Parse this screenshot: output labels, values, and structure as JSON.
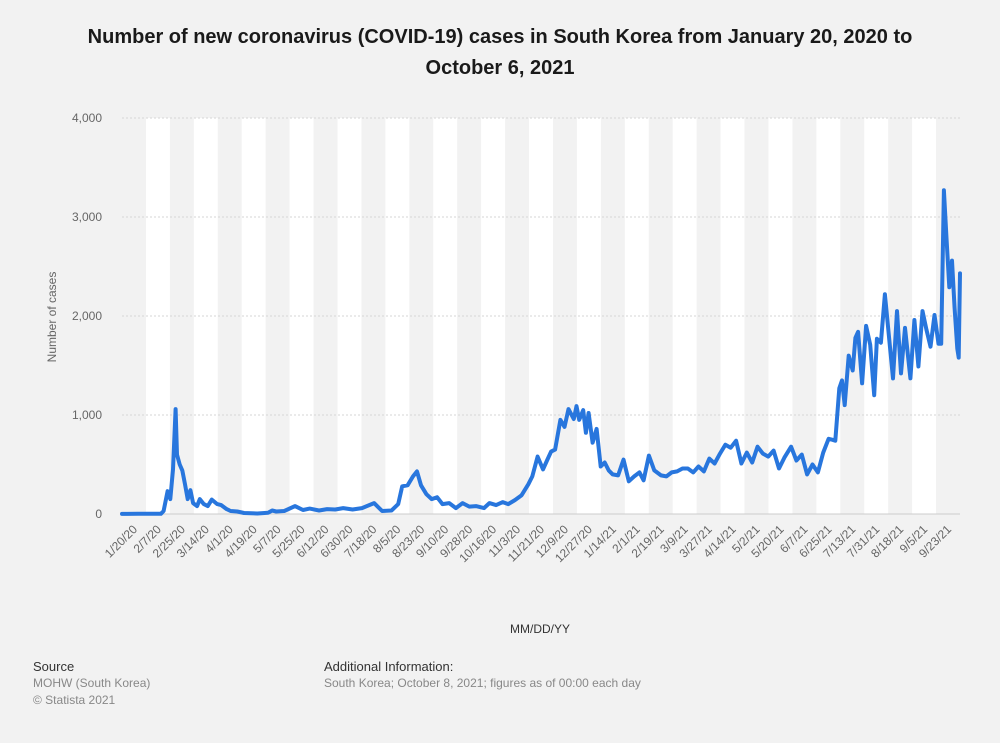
{
  "title": "Number of new coronavirus (COVID-19) cases in South Korea from January 20, 2020 to October 6, 2021",
  "chart_data": {
    "type": "line",
    "title": "Number of new coronavirus (COVID-19) cases in South Korea from January 20, 2020 to October 6, 2021",
    "xlabel": "MM/DD/YY",
    "ylabel": "Number of cases",
    "ylim": [
      0,
      4000
    ],
    "yticks": [
      "0",
      "1,000",
      "2,000",
      "3,000",
      "4,000"
    ],
    "xticks": [
      "1/20/20",
      "2/7/20",
      "2/25/20",
      "3/14/20",
      "4/1/20",
      "4/19/20",
      "5/7/20",
      "5/25/20",
      "6/12/20",
      "6/30/20",
      "7/18/20",
      "8/5/20",
      "8/23/20",
      "9/10/20",
      "9/28/20",
      "10/16/20",
      "11/3/20",
      "11/21/20",
      "12/9/20",
      "12/27/20",
      "1/14/21",
      "2/1/21",
      "2/19/21",
      "3/9/21",
      "3/27/21",
      "4/14/21",
      "5/2/21",
      "5/20/21",
      "6/7/21",
      "6/25/21",
      "7/13/21",
      "7/31/21",
      "8/18/21",
      "9/5/21",
      "9/23/21"
    ],
    "x_start": "2020-01-20",
    "x_end": "2021-10-06",
    "grid": true,
    "line_color": "#2876dd",
    "series_points": [
      [
        "2020-01-20",
        1
      ],
      [
        "2020-02-01",
        2
      ],
      [
        "2020-02-10",
        3
      ],
      [
        "2020-02-18",
        2
      ],
      [
        "2020-02-20",
        30
      ],
      [
        "2020-02-23",
        230
      ],
      [
        "2020-02-25",
        150
      ],
      [
        "2020-02-27",
        450
      ],
      [
        "2020-02-29",
        1060
      ],
      [
        "2020-03-01",
        600
      ],
      [
        "2020-03-03",
        500
      ],
      [
        "2020-03-05",
        440
      ],
      [
        "2020-03-07",
        300
      ],
      [
        "2020-03-09",
        150
      ],
      [
        "2020-03-11",
        240
      ],
      [
        "2020-03-13",
        110
      ],
      [
        "2020-03-16",
        80
      ],
      [
        "2020-03-18",
        150
      ],
      [
        "2020-03-21",
        100
      ],
      [
        "2020-03-24",
        80
      ],
      [
        "2020-03-27",
        145
      ],
      [
        "2020-03-31",
        100
      ],
      [
        "2020-04-03",
        90
      ],
      [
        "2020-04-07",
        50
      ],
      [
        "2020-04-10",
        30
      ],
      [
        "2020-04-15",
        25
      ],
      [
        "2020-04-20",
        10
      ],
      [
        "2020-04-30",
        5
      ],
      [
        "2020-05-08",
        12
      ],
      [
        "2020-05-11",
        35
      ],
      [
        "2020-05-14",
        25
      ],
      [
        "2020-05-20",
        30
      ],
      [
        "2020-05-28",
        80
      ],
      [
        "2020-06-03",
        40
      ],
      [
        "2020-06-08",
        55
      ],
      [
        "2020-06-15",
        35
      ],
      [
        "2020-06-21",
        50
      ],
      [
        "2020-06-27",
        45
      ],
      [
        "2020-07-03",
        60
      ],
      [
        "2020-07-10",
        45
      ],
      [
        "2020-07-17",
        60
      ],
      [
        "2020-07-26",
        110
      ],
      [
        "2020-08-01",
        30
      ],
      [
        "2020-08-08",
        35
      ],
      [
        "2020-08-13",
        100
      ],
      [
        "2020-08-16",
        280
      ],
      [
        "2020-08-20",
        290
      ],
      [
        "2020-08-24",
        380
      ],
      [
        "2020-08-27",
        430
      ],
      [
        "2020-08-30",
        290
      ],
      [
        "2020-09-03",
        200
      ],
      [
        "2020-09-07",
        150
      ],
      [
        "2020-09-11",
        170
      ],
      [
        "2020-09-15",
        100
      ],
      [
        "2020-09-20",
        110
      ],
      [
        "2020-09-25",
        60
      ],
      [
        "2020-09-30",
        110
      ],
      [
        "2020-10-05",
        75
      ],
      [
        "2020-10-10",
        80
      ],
      [
        "2020-10-16",
        60
      ],
      [
        "2020-10-20",
        110
      ],
      [
        "2020-10-25",
        90
      ],
      [
        "2020-10-30",
        120
      ],
      [
        "2020-11-03",
        100
      ],
      [
        "2020-11-08",
        140
      ],
      [
        "2020-11-13",
        190
      ],
      [
        "2020-11-18",
        300
      ],
      [
        "2020-11-21",
        380
      ],
      [
        "2020-11-25",
        580
      ],
      [
        "2020-11-29",
        450
      ],
      [
        "2020-12-02",
        540
      ],
      [
        "2020-12-05",
        630
      ],
      [
        "2020-12-08",
        650
      ],
      [
        "2020-12-12",
        950
      ],
      [
        "2020-12-15",
        880
      ],
      [
        "2020-12-18",
        1060
      ],
      [
        "2020-12-22",
        960
      ],
      [
        "2020-12-24",
        1090
      ],
      [
        "2020-12-26",
        950
      ],
      [
        "2020-12-29",
        1050
      ],
      [
        "2020-12-31",
        820
      ],
      [
        "2021-01-02",
        1020
      ],
      [
        "2021-01-05",
        720
      ],
      [
        "2021-01-08",
        860
      ],
      [
        "2021-01-11",
        480
      ],
      [
        "2021-01-14",
        520
      ],
      [
        "2021-01-17",
        440
      ],
      [
        "2021-01-20",
        400
      ],
      [
        "2021-01-24",
        390
      ],
      [
        "2021-01-28",
        550
      ],
      [
        "2021-02-01",
        330
      ],
      [
        "2021-02-05",
        380
      ],
      [
        "2021-02-09",
        420
      ],
      [
        "2021-02-12",
        340
      ],
      [
        "2021-02-16",
        590
      ],
      [
        "2021-02-20",
        440
      ],
      [
        "2021-02-25",
        390
      ],
      [
        "2021-03-01",
        380
      ],
      [
        "2021-03-05",
        420
      ],
      [
        "2021-03-09",
        430
      ],
      [
        "2021-03-13",
        460
      ],
      [
        "2021-03-17",
        460
      ],
      [
        "2021-03-21",
        420
      ],
      [
        "2021-03-25",
        480
      ],
      [
        "2021-03-29",
        430
      ],
      [
        "2021-04-02",
        560
      ],
      [
        "2021-04-06",
        510
      ],
      [
        "2021-04-10",
        610
      ],
      [
        "2021-04-14",
        700
      ],
      [
        "2021-04-18",
        670
      ],
      [
        "2021-04-22",
        740
      ],
      [
        "2021-04-26",
        510
      ],
      [
        "2021-04-30",
        620
      ],
      [
        "2021-05-04",
        520
      ],
      [
        "2021-05-08",
        680
      ],
      [
        "2021-05-12",
        610
      ],
      [
        "2021-05-16",
        580
      ],
      [
        "2021-05-20",
        640
      ],
      [
        "2021-05-24",
        460
      ],
      [
        "2021-05-28",
        570
      ],
      [
        "2021-06-02",
        680
      ],
      [
        "2021-06-06",
        540
      ],
      [
        "2021-06-10",
        600
      ],
      [
        "2021-06-14",
        400
      ],
      [
        "2021-06-18",
        500
      ],
      [
        "2021-06-22",
        420
      ],
      [
        "2021-06-26",
        620
      ],
      [
        "2021-06-30",
        760
      ],
      [
        "2021-07-03",
        750
      ],
      [
        "2021-07-05",
        740
      ],
      [
        "2021-07-08",
        1270
      ],
      [
        "2021-07-10",
        1350
      ],
      [
        "2021-07-12",
        1100
      ],
      [
        "2021-07-15",
        1600
      ],
      [
        "2021-07-18",
        1450
      ],
      [
        "2021-07-20",
        1780
      ],
      [
        "2021-07-22",
        1840
      ],
      [
        "2021-07-25",
        1320
      ],
      [
        "2021-07-28",
        1900
      ],
      [
        "2021-07-31",
        1710
      ],
      [
        "2021-08-03",
        1200
      ],
      [
        "2021-08-05",
        1770
      ],
      [
        "2021-08-08",
        1730
      ],
      [
        "2021-08-11",
        2220
      ],
      [
        "2021-08-14",
        1800
      ],
      [
        "2021-08-17",
        1370
      ],
      [
        "2021-08-20",
        2050
      ],
      [
        "2021-08-23",
        1420
      ],
      [
        "2021-08-26",
        1880
      ],
      [
        "2021-08-30",
        1370
      ],
      [
        "2021-09-02",
        1960
      ],
      [
        "2021-09-05",
        1490
      ],
      [
        "2021-09-08",
        2050
      ],
      [
        "2021-09-11",
        1860
      ],
      [
        "2021-09-14",
        1690
      ],
      [
        "2021-09-17",
        2010
      ],
      [
        "2021-09-20",
        1720
      ],
      [
        "2021-09-22",
        1720
      ],
      [
        "2021-09-24",
        3270
      ],
      [
        "2021-09-26",
        2770
      ],
      [
        "2021-09-28",
        2290
      ],
      [
        "2021-09-30",
        2560
      ],
      [
        "2021-10-02",
        2080
      ],
      [
        "2021-10-04",
        1670
      ],
      [
        "2021-10-05",
        1580
      ],
      [
        "2021-10-06",
        2430
      ]
    ]
  },
  "footer": {
    "source_head": "Source",
    "source_line1": "MOHW (South Korea)",
    "source_line2": "© Statista 2021",
    "info_head": "Additional Information:",
    "info_line1": "South Korea; October 8, 2021; figures as of 00:00 each day"
  }
}
